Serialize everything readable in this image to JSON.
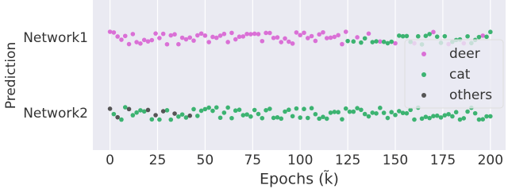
{
  "chart_data": {
    "type": "strip",
    "y_label": "Prediction",
    "x_label": "Epochs (k̃)",
    "categories": [
      "Network1",
      "Network2"
    ],
    "xlim": [
      -9,
      208
    ],
    "xticks": [
      0,
      25,
      50,
      75,
      100,
      125,
      150,
      175,
      200
    ],
    "grid": true,
    "legend": "right",
    "series": [
      {
        "name": "deer",
        "color": "#da70d6",
        "x": [
          [
            0,
            2,
            4,
            6,
            8,
            10,
            12,
            14,
            16,
            18,
            20,
            22,
            24,
            26,
            28,
            30,
            32,
            34,
            36,
            38,
            40,
            42,
            44,
            46,
            48,
            50,
            52,
            54,
            56,
            58,
            60,
            62,
            64,
            66,
            68,
            70,
            72,
            74,
            76,
            78,
            80,
            82,
            84,
            86,
            88,
            90,
            92,
            94,
            96,
            98,
            100,
            102,
            104,
            106,
            108,
            110,
            112,
            114,
            116,
            118,
            120,
            122,
            124,
            130,
            136,
            142,
            150,
            160,
            170,
            178,
            186,
            196
          ],
          []
        ]
      },
      {
        "name": "cat",
        "color": "#3cb371",
        "x": [
          [
            125,
            128,
            132,
            134,
            138,
            140,
            144,
            146,
            148,
            152,
            154,
            156,
            158,
            162,
            164,
            166,
            168,
            172,
            174,
            176,
            180,
            182,
            184,
            188,
            190,
            192,
            194,
            198,
            200
          ],
          [
            2,
            6,
            8,
            12,
            14,
            16,
            18,
            22,
            26,
            30,
            32,
            36,
            38,
            40,
            44,
            46,
            48,
            50,
            52,
            54,
            56,
            58,
            60,
            62,
            64,
            66,
            68,
            70,
            72,
            74,
            76,
            78,
            80,
            82,
            84,
            86,
            88,
            90,
            92,
            94,
            96,
            98,
            100,
            102,
            104,
            106,
            108,
            110,
            112,
            114,
            116,
            118,
            120,
            122,
            124,
            126,
            128,
            130,
            132,
            134,
            136,
            138,
            140,
            142,
            144,
            146,
            148,
            150,
            152,
            154,
            156,
            158,
            160,
            162,
            164,
            166,
            168,
            170,
            172,
            174,
            176,
            178,
            180,
            182,
            184,
            186,
            188,
            190,
            192,
            194,
            196,
            198,
            200
          ]
        ]
      },
      {
        "name": "others",
        "color": "#555555",
        "x": [
          [],
          [
            0,
            4,
            10,
            20,
            24,
            28,
            34,
            42
          ]
        ]
      }
    ]
  }
}
